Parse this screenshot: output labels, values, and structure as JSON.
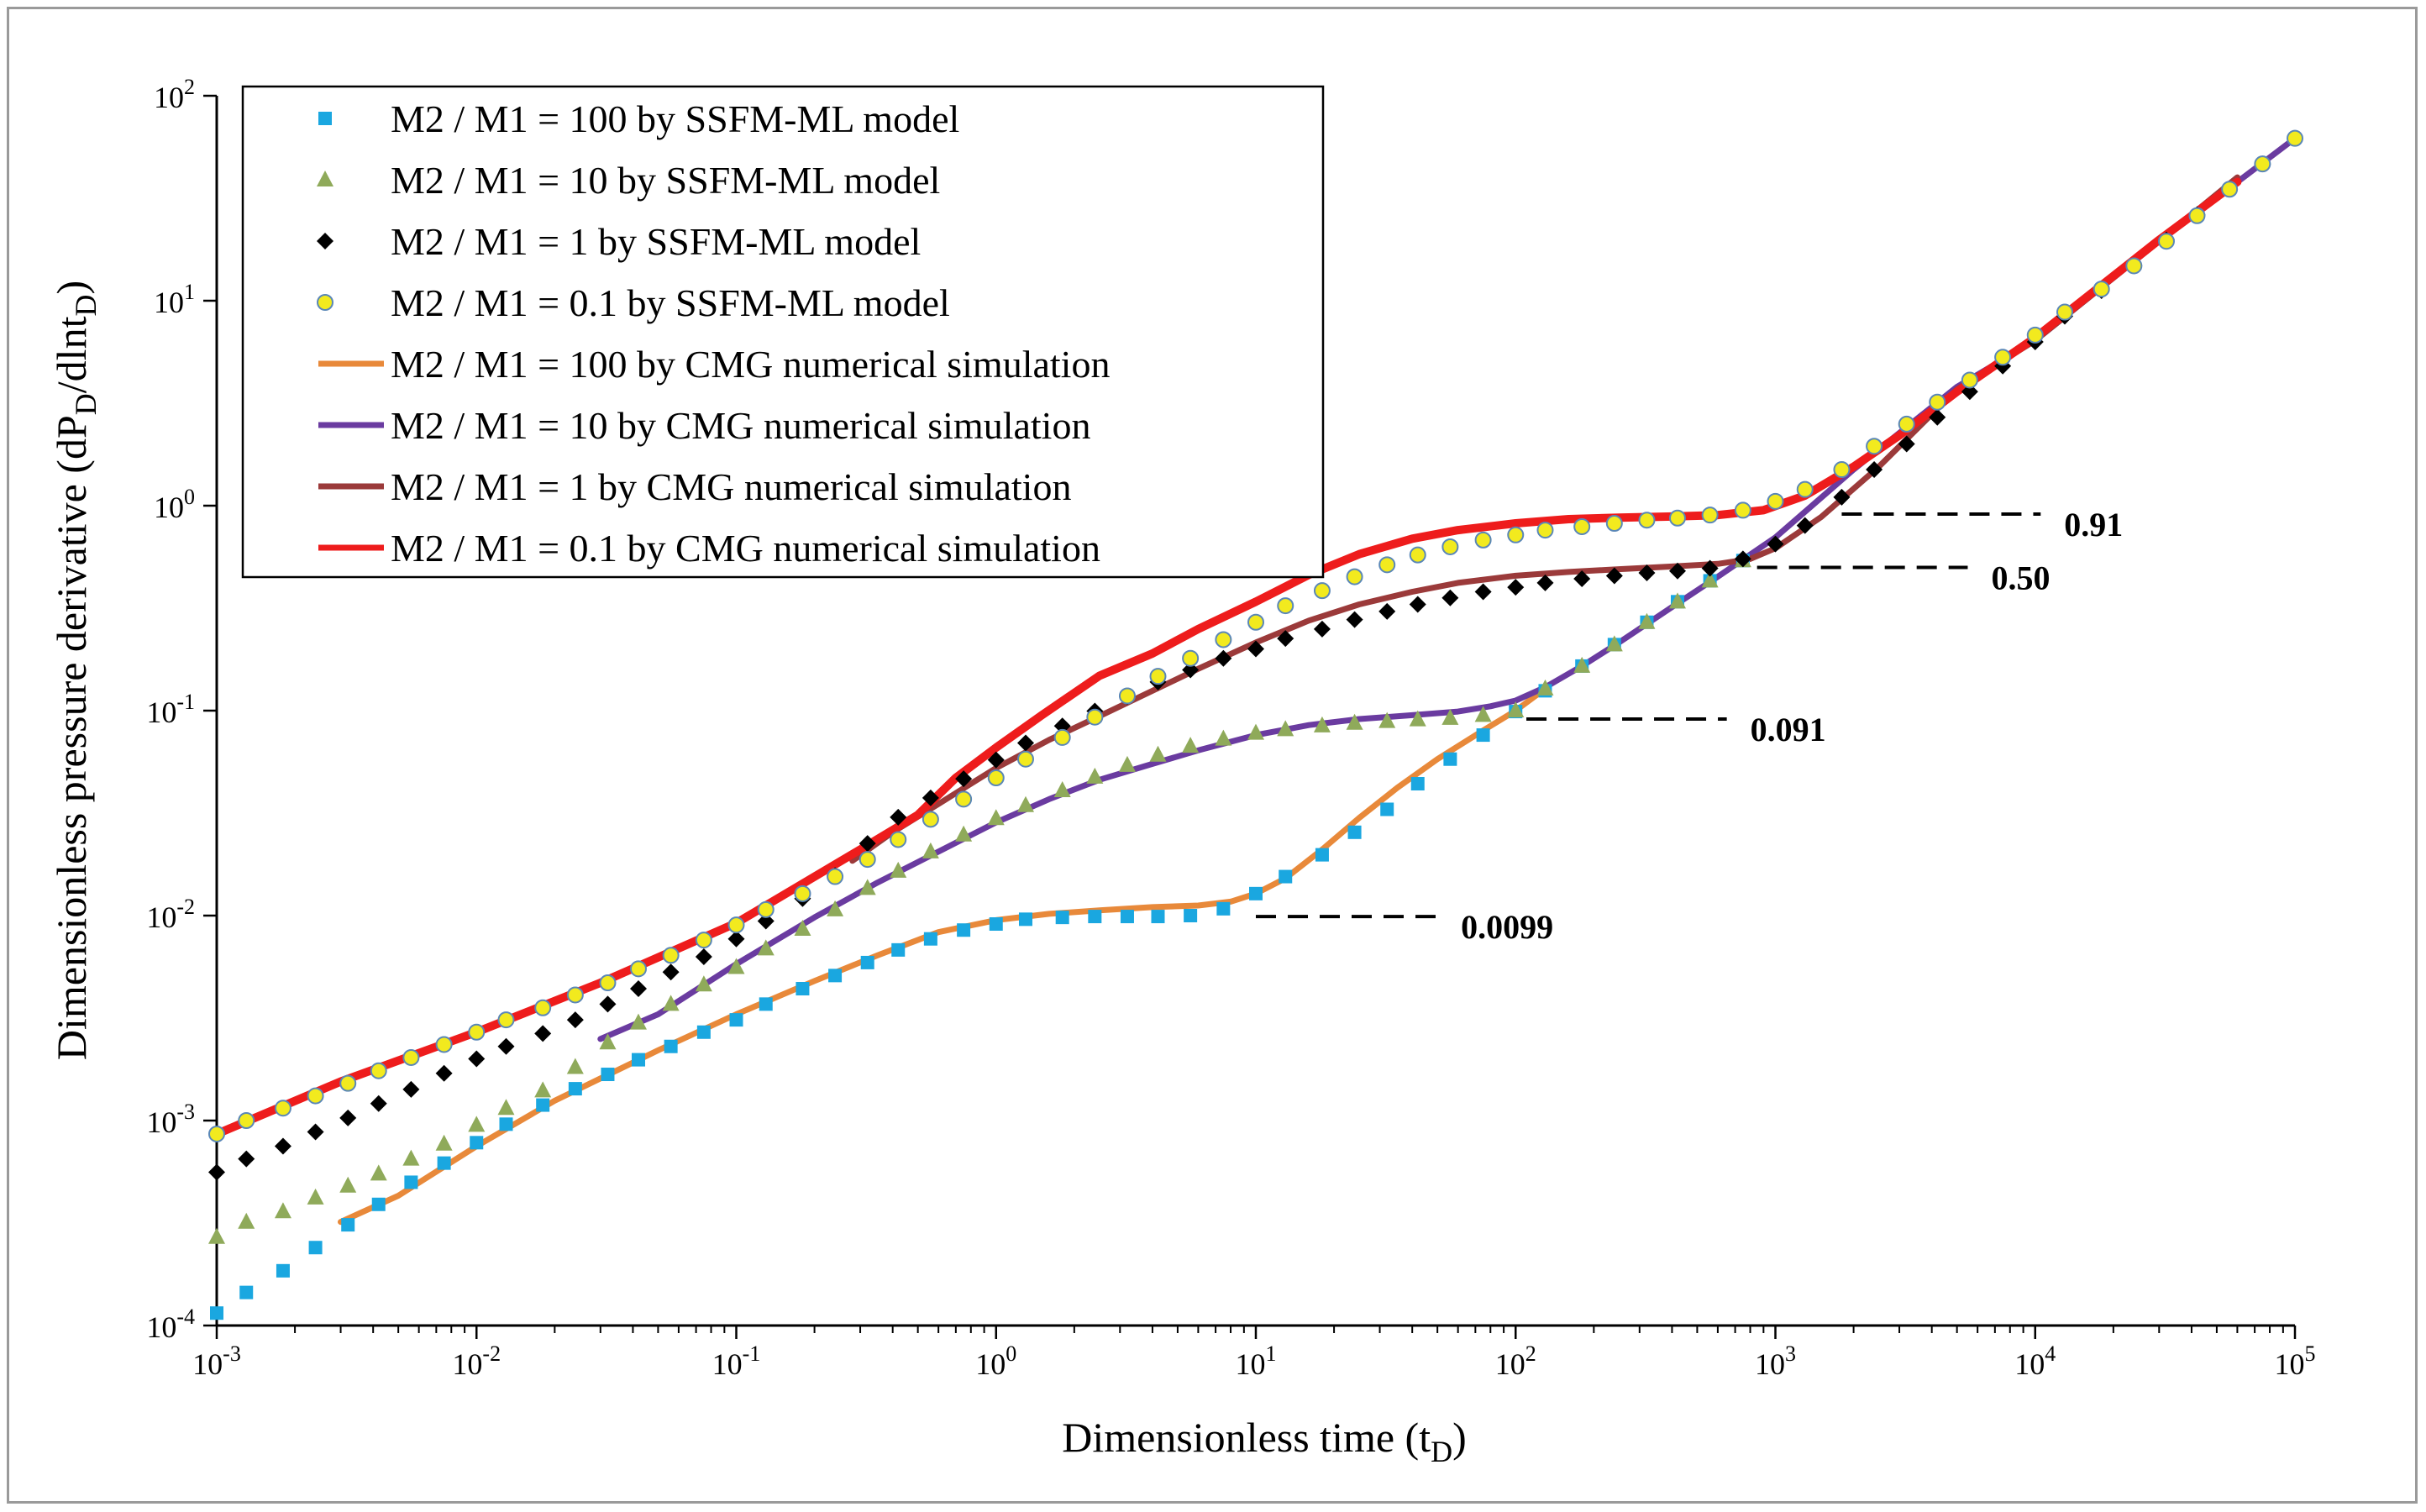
{
  "chart_data": {
    "type": "scatter",
    "xscale": "log",
    "yscale": "log",
    "xlim": [
      0.001,
      100000
    ],
    "ylim": [
      0.0001,
      100
    ],
    "xlabel": "Dimensionless time (t",
    "xlabel_sub": "D",
    "xlabel_close": ")",
    "ylabel": "Dimensionless pressure derivative (dP",
    "ylabel_sub1": "D",
    "ylabel_mid": "/dlnt",
    "ylabel_sub2": "D",
    "ylabel_close": ")",
    "x_ticks": [
      {
        "base": "10",
        "exp": "-3"
      },
      {
        "base": "10",
        "exp": "-2"
      },
      {
        "base": "10",
        "exp": "-1"
      },
      {
        "base": "10",
        "exp": "0"
      },
      {
        "base": "10",
        "exp": "1"
      },
      {
        "base": "10",
        "exp": "2"
      },
      {
        "base": "10",
        "exp": "3"
      },
      {
        "base": "10",
        "exp": "4"
      },
      {
        "base": "10",
        "exp": "5"
      }
    ],
    "y_ticks": [
      {
        "base": "10",
        "exp": "-4"
      },
      {
        "base": "10",
        "exp": "-3"
      },
      {
        "base": "10",
        "exp": "-2"
      },
      {
        "base": "10",
        "exp": "-1"
      },
      {
        "base": "10",
        "exp": "0"
      },
      {
        "base": "10",
        "exp": "1"
      },
      {
        "base": "10",
        "exp": "2"
      }
    ],
    "legend_position": "top-left",
    "grid": false,
    "series": [
      {
        "name": "M2 / M1 = 100 by SSFM-ML model",
        "kind": "square",
        "color": "#1aa7e0",
        "x": [
          0.001,
          0.0013,
          0.0018,
          0.0024,
          0.0032,
          0.0042,
          0.0056,
          0.0075,
          0.01,
          0.013,
          0.018,
          0.024,
          0.032,
          0.042,
          0.056,
          0.075,
          0.1,
          0.13,
          0.18,
          0.24,
          0.32,
          0.42,
          0.56,
          0.75,
          1,
          1.3,
          1.8,
          2.4,
          3.2,
          4.2,
          5.6,
          7.5,
          10,
          13,
          18,
          24,
          32,
          42,
          56,
          75,
          100,
          130,
          180,
          240,
          320,
          420,
          560,
          750
        ],
        "y": [
          0.000115,
          0.000145,
          0.000185,
          0.00024,
          0.00031,
          0.00039,
          0.0005,
          0.00062,
          0.00078,
          0.00096,
          0.00119,
          0.00143,
          0.00168,
          0.00198,
          0.0023,
          0.0027,
          0.0031,
          0.0037,
          0.0044,
          0.0051,
          0.0059,
          0.0068,
          0.0077,
          0.0085,
          0.0091,
          0.0096,
          0.0098,
          0.0099,
          0.0099,
          0.0099,
          0.01,
          0.0108,
          0.0128,
          0.0155,
          0.0198,
          0.0255,
          0.033,
          0.044,
          0.058,
          0.076,
          0.099,
          0.125,
          0.165,
          0.21,
          0.27,
          0.34,
          0.43,
          0.54
        ]
      },
      {
        "name": "M2 / M1 = 10 by SSFM-ML model",
        "kind": "triangle",
        "color": "#8faa5a",
        "x": [
          0.001,
          0.0013,
          0.0018,
          0.0024,
          0.0032,
          0.0042,
          0.0056,
          0.0075,
          0.01,
          0.013,
          0.018,
          0.024,
          0.032,
          0.042,
          0.056,
          0.075,
          0.1,
          0.13,
          0.18,
          0.24,
          0.32,
          0.42,
          0.56,
          0.75,
          1,
          1.3,
          1.8,
          2.4,
          3.2,
          4.2,
          5.6,
          7.5,
          10,
          13,
          18,
          24,
          32,
          42,
          56,
          75,
          100,
          130,
          180,
          240,
          320,
          420,
          560,
          750
        ],
        "y": [
          0.00027,
          0.00032,
          0.00036,
          0.00042,
          0.00048,
          0.00055,
          0.00065,
          0.00077,
          0.00095,
          0.00115,
          0.0014,
          0.00182,
          0.0024,
          0.003,
          0.0037,
          0.0046,
          0.0056,
          0.0069,
          0.0086,
          0.0107,
          0.0136,
          0.0165,
          0.0205,
          0.0248,
          0.0298,
          0.0345,
          0.0408,
          0.0475,
          0.0542,
          0.0608,
          0.0672,
          0.0728,
          0.0778,
          0.081,
          0.0845,
          0.087,
          0.0888,
          0.0905,
          0.092,
          0.095,
          0.1,
          0.128,
          0.165,
          0.21,
          0.27,
          0.34,
          0.43,
          0.54
        ]
      },
      {
        "name": "M2 / M1 = 1 by SSFM-ML model",
        "kind": "diamond",
        "color": "#000000",
        "x": [
          0.001,
          0.0013,
          0.0018,
          0.0024,
          0.0032,
          0.0042,
          0.0056,
          0.0075,
          0.01,
          0.013,
          0.018,
          0.024,
          0.032,
          0.042,
          0.056,
          0.075,
          0.1,
          0.13,
          0.18,
          0.24,
          0.32,
          0.42,
          0.56,
          0.75,
          1,
          1.3,
          1.8,
          2.4,
          3.2,
          4.2,
          5.6,
          7.5,
          10,
          13,
          18,
          24,
          32,
          42,
          56,
          75,
          100,
          130,
          180,
          240,
          320,
          420,
          560,
          750,
          1000,
          1300,
          1800,
          2400,
          3200,
          4200,
          5600,
          7500,
          10000,
          13000,
          18000,
          24000,
          32000,
          42000,
          56000,
          75000,
          100000
        ],
        "y": [
          0.00056,
          0.00065,
          0.00075,
          0.00088,
          0.00103,
          0.00121,
          0.00142,
          0.0017,
          0.002,
          0.0023,
          0.00266,
          0.0031,
          0.0037,
          0.0044,
          0.0053,
          0.0063,
          0.0077,
          0.0094,
          0.0121,
          0.0157,
          0.0225,
          0.0302,
          0.0375,
          0.0465,
          0.0575,
          0.0695,
          0.0842,
          0.0995,
          0.117,
          0.138,
          0.158,
          0.18,
          0.2,
          0.225,
          0.25,
          0.278,
          0.305,
          0.33,
          0.355,
          0.38,
          0.4,
          0.42,
          0.44,
          0.455,
          0.47,
          0.48,
          0.495,
          0.55,
          0.65,
          0.8,
          1.1,
          1.5,
          2.0,
          2.7,
          3.6,
          4.8,
          6.3,
          8.4,
          11.2,
          14.8,
          19.8,
          26.3,
          35,
          46.5,
          62
        ]
      },
      {
        "name": "M2 / M1 = 0.1 by SSFM-ML model",
        "kind": "circle",
        "color": "#f2ea1e",
        "x": [
          0.001,
          0.0013,
          0.0018,
          0.0024,
          0.0032,
          0.0042,
          0.0056,
          0.0075,
          0.01,
          0.013,
          0.018,
          0.024,
          0.032,
          0.042,
          0.056,
          0.075,
          0.1,
          0.13,
          0.18,
          0.24,
          0.32,
          0.42,
          0.56,
          0.75,
          1,
          1.3,
          1.8,
          2.4,
          3.2,
          4.2,
          5.6,
          7.5,
          10,
          13,
          18,
          24,
          32,
          42,
          56,
          75,
          100,
          130,
          180,
          240,
          320,
          420,
          560,
          750,
          1000,
          1300,
          1800,
          2400,
          3200,
          4200,
          5600,
          7500,
          10000,
          13000,
          18000,
          24000,
          32000,
          42000,
          56000,
          75000,
          100000
        ],
        "y": [
          0.00086,
          0.001,
          0.00115,
          0.00132,
          0.00152,
          0.00175,
          0.00203,
          0.00235,
          0.0027,
          0.0031,
          0.00355,
          0.0041,
          0.0047,
          0.0055,
          0.0064,
          0.0076,
          0.009,
          0.0107,
          0.0128,
          0.0155,
          0.0188,
          0.0235,
          0.0295,
          0.037,
          0.047,
          0.058,
          0.074,
          0.093,
          0.118,
          0.147,
          0.18,
          0.222,
          0.27,
          0.325,
          0.385,
          0.45,
          0.515,
          0.575,
          0.63,
          0.68,
          0.72,
          0.76,
          0.79,
          0.82,
          0.85,
          0.87,
          0.9,
          0.95,
          1.05,
          1.2,
          1.5,
          1.95,
          2.5,
          3.2,
          4.1,
          5.3,
          6.8,
          8.8,
          11.4,
          14.8,
          19.5,
          26,
          35,
          46.5,
          62
        ]
      },
      {
        "name": "M2 / M1 = 100 by CMG numerical simulation",
        "kind": "line",
        "color": "#e8893a",
        "x": [
          0.003,
          0.005,
          0.01,
          0.02,
          0.05,
          0.1,
          0.2,
          0.35,
          0.6,
          1,
          1.6,
          2.5,
          4,
          6,
          8,
          10,
          13,
          18,
          25,
          35,
          50,
          75,
          100,
          130
        ],
        "y": [
          0.00032,
          0.00043,
          0.00075,
          0.00125,
          0.0022,
          0.0033,
          0.0048,
          0.0064,
          0.0083,
          0.0095,
          0.0102,
          0.0106,
          0.011,
          0.0112,
          0.0117,
          0.0128,
          0.0152,
          0.021,
          0.03,
          0.042,
          0.058,
          0.08,
          0.1,
          0.128
        ]
      },
      {
        "name": "M2 / M1 = 10 by CMG numerical simulation",
        "kind": "line",
        "color": "#6a3ba0",
        "x": [
          0.03,
          0.05,
          0.1,
          0.2,
          0.35,
          0.6,
          1,
          1.6,
          2.5,
          4,
          6,
          10,
          16,
          25,
          40,
          60,
          80,
          100,
          130,
          180,
          250,
          400,
          600,
          1000,
          2000,
          5000,
          10000,
          30000,
          100000
        ],
        "y": [
          0.0025,
          0.0033,
          0.0058,
          0.0098,
          0.0145,
          0.0205,
          0.0285,
          0.037,
          0.046,
          0.055,
          0.064,
          0.076,
          0.085,
          0.091,
          0.095,
          0.099,
          0.105,
          0.112,
          0.13,
          0.165,
          0.215,
          0.32,
          0.45,
          0.7,
          1.5,
          3.8,
          6.4,
          19.5,
          62
        ]
      },
      {
        "name": "M2 / M1 = 1 by CMG numerical simulation",
        "kind": "line",
        "color": "#9b3a3a",
        "x": [
          0.28,
          0.4,
          0.6,
          1,
          1.6,
          2.5,
          4,
          6,
          10,
          16,
          25,
          40,
          60,
          100,
          160,
          250,
          400,
          600,
          800,
          1000,
          1500,
          2500,
          5000,
          10000,
          30000,
          60000
        ],
        "y": [
          0.0185,
          0.0255,
          0.035,
          0.0525,
          0.072,
          0.094,
          0.125,
          0.16,
          0.215,
          0.275,
          0.33,
          0.38,
          0.42,
          0.455,
          0.475,
          0.49,
          0.505,
          0.52,
          0.55,
          0.62,
          0.88,
          1.55,
          3.7,
          6.4,
          19.5,
          40
        ]
      },
      {
        "name": "M2 / M1 = 0.1 by CMG numerical simulation",
        "kind": "line",
        "color": "#ee1c1c",
        "x": [
          0.001,
          0.003,
          0.01,
          0.03,
          0.1,
          0.3,
          0.5,
          0.7,
          1,
          1.5,
          2.5,
          4,
          6,
          10,
          16,
          25,
          40,
          60,
          100,
          160,
          250,
          400,
          600,
          900,
          1300,
          2000,
          3000,
          5000,
          10000,
          30000,
          60000
        ],
        "y": [
          0.00086,
          0.00155,
          0.0027,
          0.0047,
          0.0092,
          0.021,
          0.031,
          0.047,
          0.066,
          0.095,
          0.148,
          0.19,
          0.25,
          0.34,
          0.46,
          0.58,
          0.69,
          0.76,
          0.82,
          0.86,
          0.875,
          0.885,
          0.9,
          0.95,
          1.12,
          1.55,
          2.2,
          3.6,
          6.6,
          19.8,
          38
        ]
      }
    ],
    "annotations": [
      {
        "text": "0.91",
        "y": 0.91,
        "x_from": 1800,
        "x_to": 10500
      },
      {
        "text": "0.50",
        "y": 0.5,
        "x_from": 850,
        "x_to": 5500
      },
      {
        "text": "0.091",
        "y": 0.091,
        "x_from": 110,
        "x_to": 650
      },
      {
        "text": "0.0099",
        "y": 0.0099,
        "x_from": 10,
        "x_to": 50
      }
    ]
  }
}
